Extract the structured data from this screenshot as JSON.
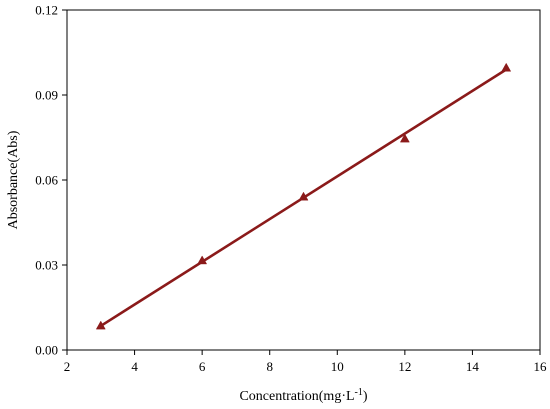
{
  "chart_data": {
    "type": "scatter",
    "title": "",
    "xlabel": "Concentration(mg·L",
    "xlabel_sup": "-1",
    "xlabel_close": ")",
    "ylabel": "Absorbance(Abs)",
    "xlim": [
      2,
      16
    ],
    "ylim": [
      0.0,
      0.12
    ],
    "x_ticks": [
      2,
      4,
      6,
      8,
      10,
      12,
      14,
      16
    ],
    "y_ticks": [
      0.0,
      0.03,
      0.06,
      0.09,
      0.12
    ],
    "y_tick_labels": [
      "0.00",
      "0.03",
      "0.06",
      "0.09",
      "0.12"
    ],
    "grid": false,
    "series": [
      {
        "marker": "triangle",
        "color": "#8b1a1a",
        "x": [
          3,
          6,
          9,
          12,
          15
        ],
        "y": [
          0.0085,
          0.0315,
          0.054,
          0.0745,
          0.0995
        ]
      }
    ],
    "fit_line": {
      "color": "#8b1a1a",
      "x": [
        3,
        15
      ],
      "y": [
        0.0085,
        0.099
      ]
    }
  }
}
